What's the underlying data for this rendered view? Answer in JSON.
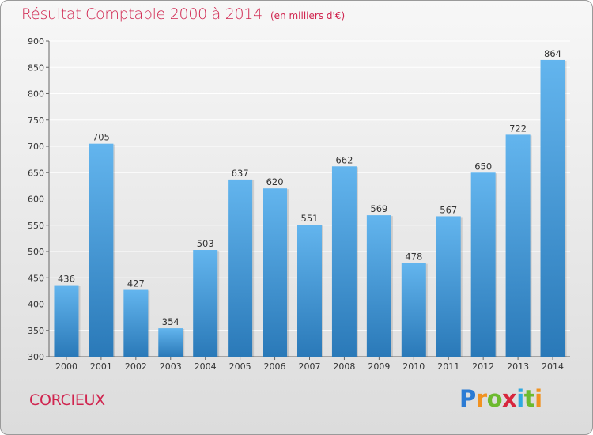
{
  "header": {
    "title": "Résultat Comptable 2000 à 2014",
    "subtitle": "(en milliers d'€)"
  },
  "footer": {
    "town": "CORCIEUX",
    "logo_text": "Proxiti"
  },
  "colors": {
    "title": "#d0254f",
    "bar_top": "#63b5ee",
    "bar_bottom": "#2a79b8",
    "grid": "#ffffff"
  },
  "chart_data": {
    "type": "bar",
    "title": "Résultat Comptable 2000 à 2014",
    "xlabel": "",
    "ylabel": "(en milliers d'€)",
    "categories": [
      "2000",
      "2001",
      "2002",
      "2003",
      "2004",
      "2005",
      "2006",
      "2007",
      "2008",
      "2009",
      "2010",
      "2011",
      "2012",
      "2013",
      "2014"
    ],
    "values": [
      436,
      705,
      427,
      354,
      503,
      637,
      620,
      551,
      662,
      569,
      478,
      567,
      650,
      722,
      864
    ],
    "ylim": [
      300,
      900
    ],
    "yticks": [
      300,
      350,
      400,
      450,
      500,
      550,
      600,
      650,
      700,
      750,
      800,
      850,
      900
    ],
    "grid": true,
    "legend": "none"
  }
}
